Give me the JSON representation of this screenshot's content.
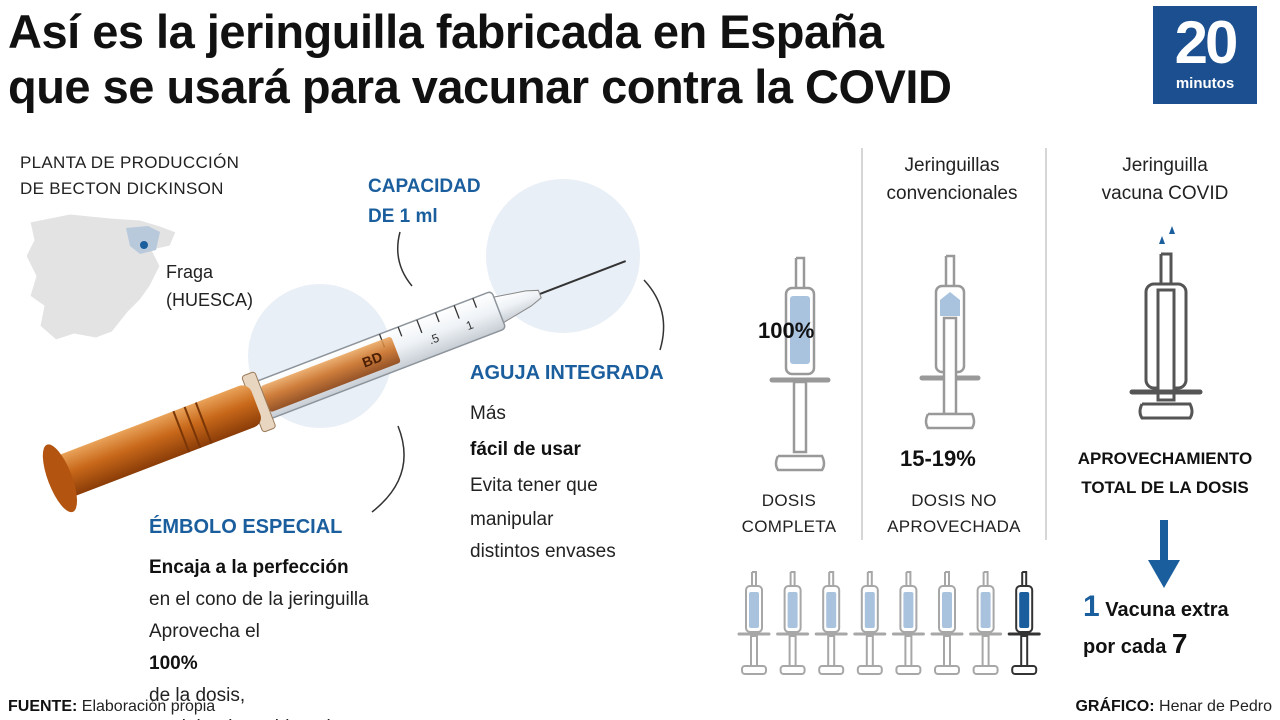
{
  "title": {
    "line1": "Así es la jeringuilla fabricada en España",
    "line2": "que se usará para vacunar contra la COVID"
  },
  "logo": {
    "number": "20",
    "word": "minutos",
    "color": "#1b4f8f"
  },
  "plant": {
    "line1": "PLANTA DE PRODUCCIÓN",
    "line2": "DE BECTON DICKINSON"
  },
  "location": {
    "city": "Fraga",
    "province": "(HUESCA)"
  },
  "capacity": {
    "line1": "CAPACIDAD",
    "line2": "DE 1 ml"
  },
  "syringe_marks": {
    "mark_a": ".5",
    "mark_b": "1",
    "brand": "BD"
  },
  "needle": {
    "title": "AGUJA INTEGRADA",
    "easy_prefix": "Más",
    "easy_bold": "fácil de usar",
    "avoid_line1": "Evita tener que",
    "avoid_line2": "manipular",
    "avoid_line3": "distintos envases"
  },
  "plunger": {
    "title": "ÉMBOLO ESPECIAL",
    "fit_bold": "Encaja a la perfección",
    "fit_rest": "en el cono de la jeringuilla",
    "use_prefix": "Aprovecha el",
    "use_bold": "100%",
    "use_suffix": "de la dosis,",
    "no_residue": "no dejando residuo alguno"
  },
  "comparison": {
    "full": {
      "percent": "100%",
      "label1": "DOSIS",
      "label2": "COMPLETA",
      "fill_fraction": 1.0
    },
    "conventional": {
      "head1": "Jeringuillas",
      "head2": "convencionales",
      "percent": "15-19%",
      "label1": "DOSIS NO",
      "label2": "APROVECHADA"
    },
    "covid": {
      "head1": "Jeringuilla",
      "head2": "vacuna COVID",
      "label1": "APROVECHAMIENTO",
      "label2": "TOTAL DE LA DOSIS"
    }
  },
  "extra": {
    "number": "1",
    "text1": "Vacuna extra",
    "text2": "por cada",
    "number2": "7",
    "syringe_count": 8,
    "highlighted_index": 8
  },
  "footer": {
    "source_label": "FUENTE:",
    "source_value": "Elaboración propia",
    "graphic_label": "GRÁFICO:",
    "graphic_value": "Henar de Pedro"
  },
  "colors": {
    "accent_blue": "#1b5e9e",
    "light_blue_fill": "#a9c3df",
    "circle_bg": "#e9eff6",
    "syringe_orange": "#c8681a",
    "gray_line": "#999999"
  }
}
